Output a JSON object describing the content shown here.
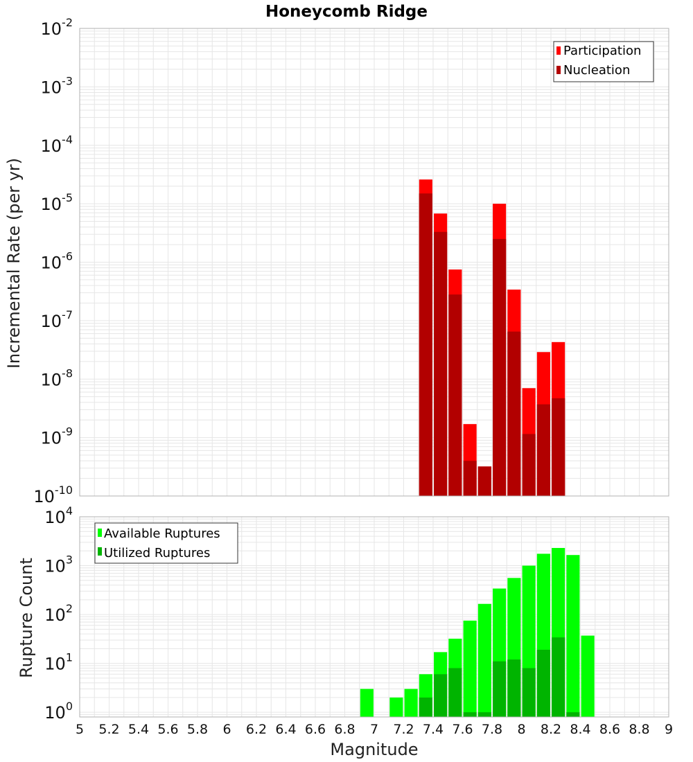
{
  "colors": {
    "participation": "#ff0000",
    "nucleation": "#b20000",
    "available": "#00ff00",
    "utilized": "#00b400",
    "grid": "#e6e6e6",
    "frame": "#b0b0b0"
  },
  "chart_data": [
    {
      "type": "bar",
      "title": "Honeycomb Ridge",
      "xlabel": "",
      "ylabel": "Incremental Rate (per yr)",
      "yscale": "log",
      "xlim": [
        5,
        9
      ],
      "ylim": [
        1e-10,
        0.01
      ],
      "ytick_exponents": [
        "-2",
        "-3",
        "-4",
        "-5",
        "-6",
        "-7",
        "-8",
        "-9",
        "-10"
      ],
      "ytick_base": "10",
      "legend_position": "top-right",
      "grid": true,
      "series": [
        {
          "name": "Participation",
          "x": [
            7.35,
            7.45,
            7.55,
            7.65,
            7.75,
            7.85,
            7.95,
            8.05,
            8.15,
            8.25
          ],
          "values": [
            2.6e-05,
            6.8e-06,
            7.5e-07,
            1.7e-09,
            3.2e-10,
            1e-05,
            3.4e-07,
            7e-09,
            2.9e-08,
            4.3e-08
          ]
        },
        {
          "name": "Nucleation",
          "x": [
            7.35,
            7.45,
            7.55,
            7.65,
            7.75,
            7.85,
            7.95,
            8.05,
            8.15,
            8.25
          ],
          "values": [
            1.5e-05,
            3.3e-06,
            2.8e-07,
            4e-10,
            3.2e-10,
            2.5e-06,
            6.5e-08,
            1.15e-09,
            3.7e-09,
            4.7e-09
          ]
        }
      ]
    },
    {
      "type": "bar",
      "title": "",
      "xlabel": "Magnitude",
      "ylabel": "Rupture Count",
      "yscale": "log",
      "xlim": [
        5,
        9
      ],
      "ylim": [
        0.8,
        10000.0
      ],
      "ytick_exponents": [
        "4",
        "3",
        "2",
        "1",
        "0"
      ],
      "ytick_base": "10",
      "xticks": [
        "5",
        "5.2",
        "5.4",
        "5.6",
        "5.8",
        "6",
        "6.2",
        "6.4",
        "6.6",
        "6.8",
        "7",
        "7.2",
        "7.4",
        "7.6",
        "7.8",
        "8",
        "8.2",
        "8.4",
        "8.6",
        "8.8",
        "9"
      ],
      "legend_position": "top-left",
      "grid": true,
      "series": [
        {
          "name": "Available Ruptures",
          "x": [
            6.95,
            7.15,
            7.25,
            7.35,
            7.45,
            7.55,
            7.65,
            7.75,
            7.85,
            7.95,
            8.05,
            8.15,
            8.25,
            8.35,
            8.45
          ],
          "values": [
            3,
            2,
            3,
            6,
            17,
            32,
            75,
            165,
            340,
            560,
            1000,
            1750,
            2300,
            1650,
            37
          ]
        },
        {
          "name": "Utilized Ruptures",
          "x": [
            7.35,
            7.45,
            7.55,
            7.65,
            7.75,
            7.85,
            7.95,
            8.05,
            8.15,
            8.25,
            8.35
          ],
          "values": [
            2,
            6,
            8,
            1,
            1,
            11,
            12,
            8,
            19,
            34,
            1
          ]
        }
      ]
    }
  ]
}
